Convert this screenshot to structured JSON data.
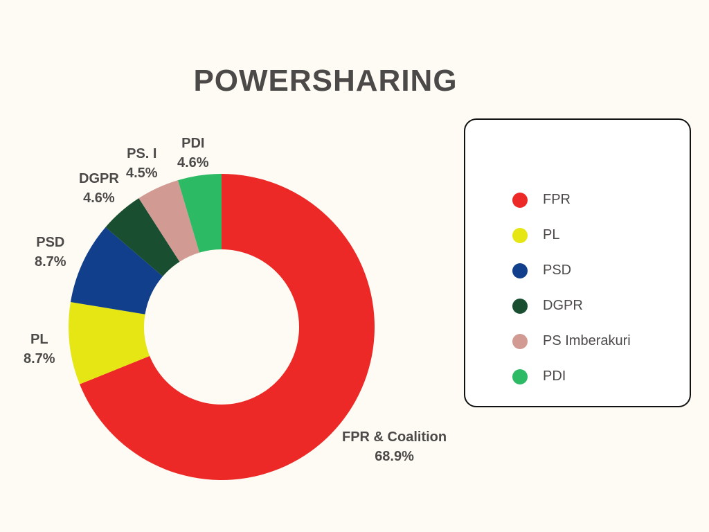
{
  "chart_data": {
    "type": "pie",
    "title": "POWERSHARING",
    "donut": true,
    "slices": [
      {
        "label": "FPR & Coalition",
        "legend": "FPR",
        "value": 68.9,
        "value_label": "68.9%",
        "color": "#ec2927"
      },
      {
        "label": "PL",
        "legend": "PL",
        "value": 8.7,
        "value_label": "8.7%",
        "color": "#e5e614"
      },
      {
        "label": "PSD",
        "legend": "PSD",
        "value": 8.7,
        "value_label": "8.7%",
        "color": "#113f8c"
      },
      {
        "label": "DGPR",
        "legend": "DGPR",
        "value": 4.6,
        "value_label": "4.6%",
        "color": "#194e31"
      },
      {
        "label": "PS. I",
        "legend": "PS Imberakuri",
        "value": 4.5,
        "value_label": "4.5%",
        "color": "#d19a92"
      },
      {
        "label": "PDI",
        "legend": "PDI",
        "value": 4.6,
        "value_label": "4.6%",
        "color": "#2dba64"
      }
    ],
    "legend_position": "right"
  }
}
